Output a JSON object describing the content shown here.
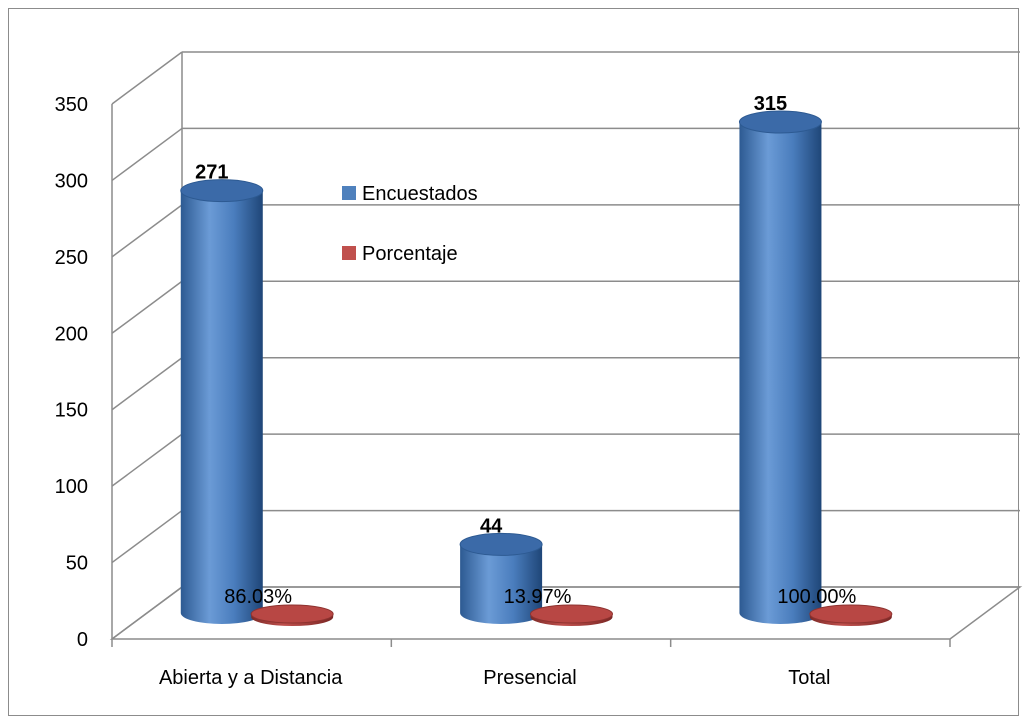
{
  "chart_data": {
    "type": "bar",
    "categories": [
      "Abierta y a Distancia",
      "Presencial",
      "Total"
    ],
    "series": [
      {
        "name": "Encuestados",
        "values": [
          271,
          44,
          315
        ],
        "labels": [
          "271",
          "44",
          "315"
        ],
        "color": "#4f81bd"
      },
      {
        "name": "Porcentaje",
        "values": [
          86.03,
          13.97,
          100.0
        ],
        "labels": [
          "86.03%",
          "13.97%",
          "100.00%"
        ],
        "color": "#c0504d"
      }
    ],
    "yticks": [
      "0",
      "50",
      "100",
      "150",
      "200",
      "250",
      "300",
      "350"
    ],
    "ylim": [
      0,
      350
    ],
    "grid": true,
    "legend": "inside-top-left",
    "style": "3d-cylinder"
  }
}
